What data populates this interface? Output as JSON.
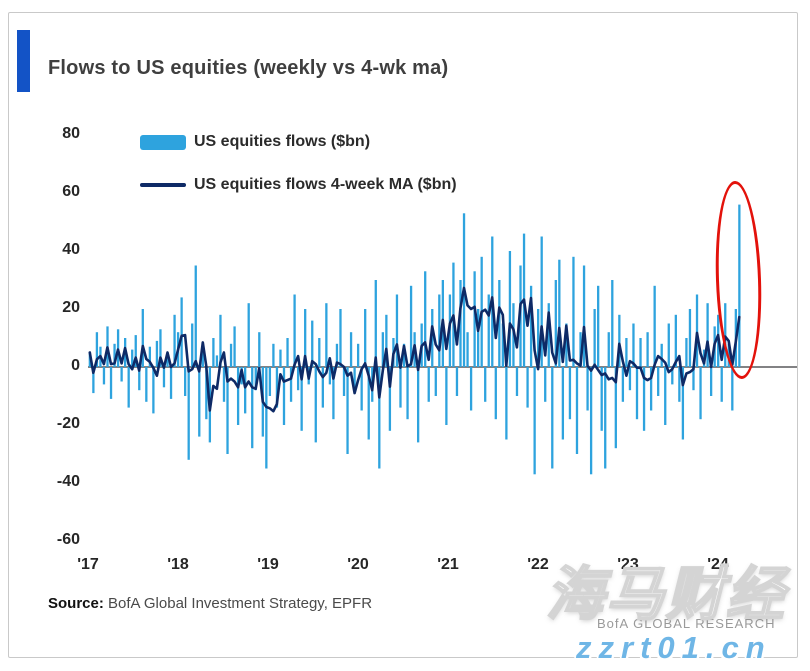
{
  "title": "Flows to US equities (weekly vs 4-wk ma)",
  "colors": {
    "accent": "#1353c6",
    "bar": "#2ea3de",
    "line": "#0e2a66",
    "zero_axis": "#58595b",
    "annotation": "#e3120b",
    "watermark_url_blue": "#6fb6e6"
  },
  "legend": [
    {
      "label": "US equities flows ($bn)",
      "type": "bar",
      "color": "#2ea3de"
    },
    {
      "label": "US equities flows 4-week MA ($bn)",
      "type": "line",
      "color": "#0e2a66"
    }
  ],
  "source": {
    "prefix": "Source:",
    "text": " BofA Global Investment Strategy, EPFR"
  },
  "watermarks": {
    "brand": "BofA GLOBAL RESEARCH",
    "overlay_cjk": "海马财经",
    "overlay_url": "zzrt01.cn"
  },
  "annotation": {
    "shape": "ellipse",
    "color": "#e3120b",
    "meaning": "highlights latest weekly inflow spike (~$56bn, 2024)"
  },
  "chart_data": {
    "type": "bar",
    "title": "Flows to US equities (weekly vs 4-wk ma)",
    "x_unit": "weekly observations, 2017-2024",
    "xticks": [
      "'17",
      "'18",
      "'19",
      "'20",
      "'21",
      "'22",
      "'23",
      "'24"
    ],
    "yticks": [
      80,
      60,
      40,
      20,
      0,
      -20,
      -40,
      -60
    ],
    "ylim": [
      -60,
      80
    ],
    "grid": false,
    "legend_position": "top-left inside plot",
    "series": [
      {
        "name": "US equities flows ($bn)",
        "type": "bar",
        "color": "#2ea3de",
        "values": [
          5,
          -9,
          12,
          7,
          -6,
          14,
          -11,
          8,
          13,
          -5,
          10,
          -14,
          6,
          11,
          -8,
          20,
          -12,
          7,
          -16,
          9,
          13,
          -7,
          5,
          -11,
          18,
          12,
          24,
          -10,
          -32,
          15,
          35,
          -24,
          8,
          -18,
          -26,
          10,
          4,
          18,
          -12,
          -30,
          8,
          14,
          -20,
          -6,
          -16,
          22,
          -28,
          -8,
          12,
          -24,
          -35,
          -10,
          8,
          -14,
          6,
          -20,
          10,
          -12,
          25,
          -8,
          -22,
          20,
          -6,
          16,
          -26,
          10,
          -14,
          22,
          -6,
          -18,
          8,
          20,
          -10,
          -30,
          12,
          -8,
          8,
          -15,
          20,
          -25,
          -12,
          30,
          -35,
          12,
          18,
          -22,
          10,
          25,
          -14,
          8,
          -18,
          28,
          12,
          -26,
          15,
          33,
          -12,
          20,
          -10,
          25,
          30,
          -20,
          25,
          36,
          -10,
          30,
          53,
          12,
          -15,
          33,
          20,
          38,
          -12,
          25,
          45,
          -18,
          30,
          15,
          -25,
          40,
          22,
          -10,
          35,
          46,
          -14,
          28,
          -37,
          20,
          45,
          -12,
          22,
          -35,
          30,
          37,
          -25,
          15,
          -18,
          38,
          -30,
          12,
          35,
          -15,
          -37,
          20,
          28,
          -22,
          -35,
          12,
          30,
          -28,
          18,
          -12,
          10,
          -8,
          15,
          -18,
          10,
          -22,
          12,
          -15,
          28,
          -10,
          8,
          -20,
          15,
          -6,
          18,
          -12,
          -25,
          10,
          20,
          -8,
          25,
          -18,
          6,
          22,
          -10,
          14,
          18,
          -12,
          22,
          8,
          -15,
          20,
          56
        ]
      },
      {
        "name": "US equities flows 4-week MA ($bn)",
        "type": "line",
        "color": "#0e2a66",
        "derived": "4-point trailing moving average of the bar series"
      }
    ]
  }
}
